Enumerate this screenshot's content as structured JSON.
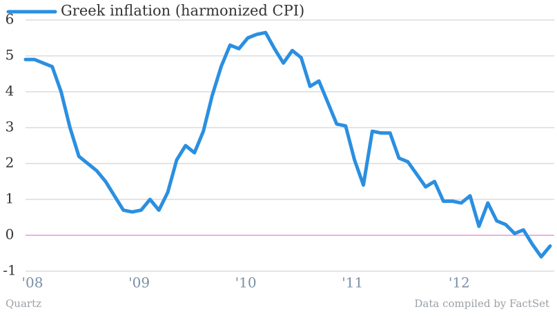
{
  "chart_data": {
    "type": "line",
    "categories": [
      "'08",
      null,
      null,
      null,
      null,
      null,
      null,
      null,
      null,
      null,
      null,
      null,
      "'09",
      null,
      null,
      null,
      null,
      null,
      null,
      null,
      null,
      null,
      null,
      null,
      "'10",
      null,
      null,
      null,
      null,
      null,
      null,
      null,
      null,
      null,
      null,
      null,
      "'11",
      null,
      null,
      null,
      null,
      null,
      null,
      null,
      null,
      null,
      null,
      null,
      "'12",
      null,
      null,
      null,
      null,
      null,
      null,
      null,
      null,
      null,
      null,
      null
    ],
    "series": [
      {
        "name": "Greek inflation (harmonized CPI)",
        "color": "#2b8fe0",
        "values": [
          4.9,
          4.9,
          4.8,
          4.7,
          4.0,
          3.0,
          2.2,
          2.0,
          1.8,
          1.5,
          1.1,
          0.7,
          0.65,
          0.7,
          1.0,
          0.7,
          1.2,
          2.1,
          2.5,
          2.3,
          2.9,
          3.9,
          4.7,
          5.3,
          5.2,
          5.5,
          5.6,
          5.65,
          5.2,
          4.8,
          5.15,
          4.95,
          4.15,
          4.3,
          3.7,
          3.1,
          3.05,
          2.1,
          1.4,
          2.9,
          2.85,
          2.85,
          2.15,
          2.05,
          1.7,
          1.35,
          1.5,
          0.95,
          0.95,
          0.9,
          1.1,
          0.25,
          0.9,
          0.4,
          0.3,
          0.05,
          0.15,
          -0.25,
          -0.6,
          -0.3
        ]
      }
    ],
    "ylim": [
      -1,
      6
    ],
    "yticks": [
      -1,
      0,
      1,
      2,
      3,
      4,
      5,
      6
    ],
    "grid": true,
    "zero_line_color": "#e05ad0",
    "legend": "top-left",
    "source_left": "Quartz",
    "source_right": "Data compiled by FactSet"
  }
}
